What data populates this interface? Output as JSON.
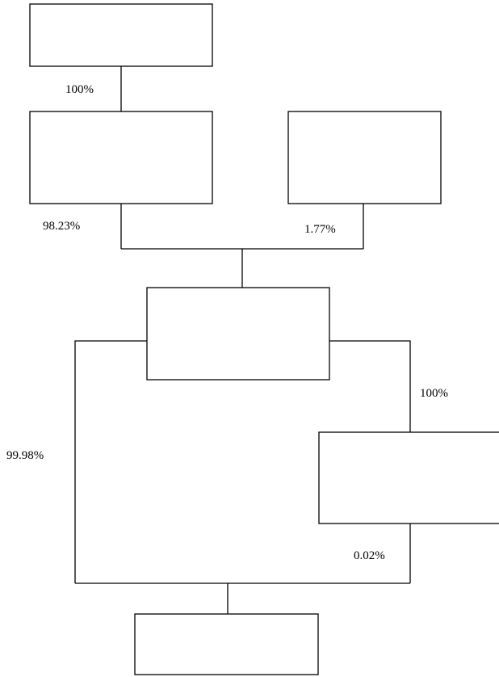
{
  "flowchart": {
    "boxes": [
      "",
      "",
      "",
      "",
      "",
      ""
    ],
    "edge_labels": {
      "top_to_left": "100%",
      "left_to_merge": "98.23%",
      "right_to_merge": "1.77%",
      "center_to_right_lower": "100%",
      "center_to_bottom": "99.98%",
      "right_lower_to_bottom": "0.02%"
    },
    "colors": {
      "stroke": "#000000",
      "fill": "#ffffff"
    }
  }
}
